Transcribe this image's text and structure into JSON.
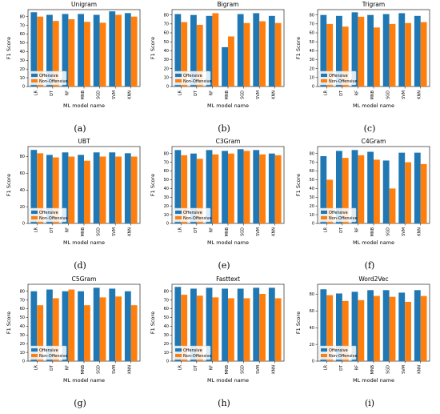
{
  "figure": {
    "series_names": [
      "Offensive",
      "Non-Offensive"
    ],
    "colors": {
      "offensive": "#1f77b4",
      "non_offensive": "#ff7f0e"
    },
    "xlabel": "ML model name",
    "ylabel": "F1 Score"
  },
  "chart_data": [
    {
      "type": "bar",
      "caption": "(a)",
      "title": "Unigram",
      "categories": [
        "LR",
        "DT",
        "RF",
        "MNB",
        "SGD",
        "SVM",
        "KNN"
      ],
      "series": [
        {
          "name": "Offensive",
          "values": [
            85,
            82,
            83,
            83,
            82,
            86,
            84
          ]
        },
        {
          "name": "Non-Offensive",
          "values": [
            80,
            75,
            77,
            74,
            73,
            82,
            80
          ]
        }
      ],
      "yticks": [
        0,
        10,
        20,
        30,
        40,
        50,
        60,
        70,
        80
      ],
      "ylim": [
        0,
        88
      ],
      "legend": "lower-left"
    },
    {
      "type": "bar",
      "caption": "(b)",
      "title": "Bigram",
      "categories": [
        "LR",
        "DT",
        "RF",
        "MNB",
        "SGD",
        "SVM",
        "KNN"
      ],
      "series": [
        {
          "name": "Offensive",
          "values": [
            81,
            80,
            79,
            44,
            81,
            82,
            79
          ]
        },
        {
          "name": "Non-Offensive",
          "values": [
            72,
            69,
            82,
            56,
            71,
            73,
            71
          ]
        }
      ],
      "yticks": [
        0,
        10,
        20,
        30,
        40,
        50,
        60,
        70,
        80
      ],
      "ylim": [
        0,
        86
      ],
      "legend": "lower-left"
    },
    {
      "type": "bar",
      "caption": "(c)",
      "title": "Trigram",
      "categories": [
        "LR",
        "DT",
        "RF",
        "MNB",
        "SGD",
        "SVM",
        "KNN"
      ],
      "series": [
        {
          "name": "Offensive",
          "values": [
            80,
            79,
            83,
            80,
            81,
            82,
            79
          ]
        },
        {
          "name": "Non-Offensive",
          "values": [
            70,
            67,
            78,
            66,
            70,
            71,
            72
          ]
        }
      ],
      "yticks": [
        0,
        10,
        20,
        30,
        40,
        50,
        60,
        70,
        80
      ],
      "ylim": [
        0,
        86
      ],
      "legend": "lower-left"
    },
    {
      "type": "bar",
      "caption": "(d)",
      "title": "UBT",
      "categories": [
        "LR",
        "DT",
        "RF",
        "MNB",
        "SGD",
        "SVM",
        "KNN"
      ],
      "series": [
        {
          "name": "Offensive",
          "values": [
            88,
            82,
            85,
            82,
            85,
            85,
            84
          ]
        },
        {
          "name": "Non-Offensive",
          "values": [
            84,
            79,
            80,
            75,
            80,
            80,
            80
          ]
        }
      ],
      "yticks": [
        0,
        20,
        40,
        60,
        80
      ],
      "ylim": [
        0,
        92
      ],
      "legend": "lower-left"
    },
    {
      "type": "bar",
      "caption": "(e)",
      "title": "C3Gram",
      "categories": [
        "LR",
        "DT",
        "RF",
        "MNB",
        "SGD",
        "SVM",
        "KNN"
      ],
      "series": [
        {
          "name": "Offensive",
          "values": [
            84,
            80,
            84,
            83,
            85,
            84,
            80
          ]
        },
        {
          "name": "Non-Offensive",
          "values": [
            78,
            74,
            79,
            80,
            83,
            79,
            78
          ]
        }
      ],
      "yticks": [
        0,
        10,
        20,
        30,
        40,
        50,
        60,
        70,
        80
      ],
      "ylim": [
        0,
        88
      ],
      "legend": "lower-left"
    },
    {
      "type": "bar",
      "caption": "(f)",
      "title": "C4Gram",
      "categories": [
        "LR",
        "DT",
        "RF",
        "MNB",
        "SGD",
        "SVM",
        "KNN"
      ],
      "series": [
        {
          "name": "Offensive",
          "values": [
            77,
            83,
            84,
            82,
            72,
            81,
            81
          ]
        },
        {
          "name": "Non-Offensive",
          "values": [
            50,
            75,
            78,
            73,
            40,
            70,
            68
          ]
        }
      ],
      "yticks": [
        0,
        10,
        20,
        30,
        40,
        50,
        60,
        70,
        80
      ],
      "ylim": [
        0,
        88
      ],
      "legend": "lower-left"
    },
    {
      "type": "bar",
      "caption": "(g)",
      "title": "C5Gram",
      "categories": [
        "LR",
        "DT",
        "RF",
        "MNB",
        "SGD",
        "SVM",
        "KNN"
      ],
      "series": [
        {
          "name": "Offensive",
          "values": [
            80,
            82,
            80,
            80,
            84,
            83,
            80
          ]
        },
        {
          "name": "Non-Offensive",
          "values": [
            64,
            72,
            82,
            64,
            73,
            74,
            64
          ]
        }
      ],
      "yticks": [
        0,
        10,
        20,
        30,
        40,
        50,
        60,
        70,
        80
      ],
      "ylim": [
        0,
        88
      ],
      "legend": "lower-left"
    },
    {
      "type": "bar",
      "caption": "(h)",
      "title": "Fasttext",
      "categories": [
        "LR",
        "DT",
        "RF",
        "MNB",
        "SGD",
        "SVM",
        "KNN"
      ],
      "series": [
        {
          "name": "Offensive",
          "values": [
            85,
            83,
            84,
            83,
            83,
            84,
            84
          ]
        },
        {
          "name": "Non-Offensive",
          "values": [
            76,
            75,
            73,
            72,
            72,
            77,
            72
          ]
        }
      ],
      "yticks": [
        0,
        10,
        20,
        30,
        40,
        50,
        60,
        70,
        80
      ],
      "ylim": [
        0,
        88
      ],
      "legend": "lower-left"
    },
    {
      "type": "bar",
      "caption": "(i)",
      "title": "Word2Vec",
      "categories": [
        "LR",
        "DT",
        "RF",
        "MNB",
        "SGD",
        "SVM",
        "KNN"
      ],
      "series": [
        {
          "name": "Offensive",
          "values": [
            86,
            81,
            83,
            85,
            85,
            82,
            85
          ]
        },
        {
          "name": "Non-Offensive",
          "values": [
            79,
            72,
            73,
            78,
            77,
            71,
            78
          ]
        }
      ],
      "yticks": [
        0,
        20,
        40,
        60,
        80
      ],
      "ylim": [
        0,
        92
      ],
      "legend": "lower-left"
    }
  ]
}
